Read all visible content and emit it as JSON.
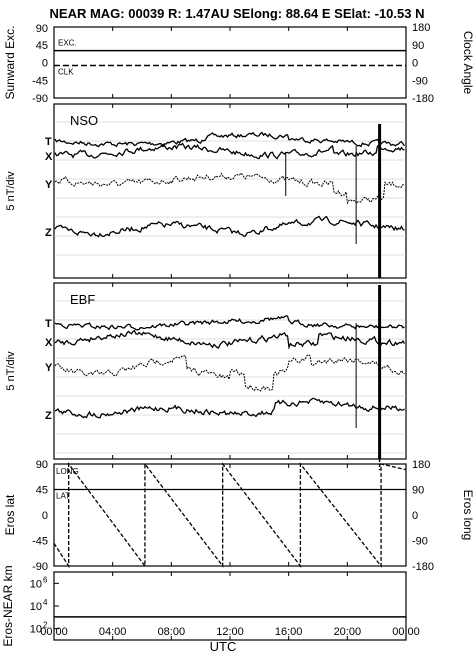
{
  "title": "NEAR MAG: 00039  R: 1.47AU  SElong:   88.64 E  SElat:  -10.53 N",
  "xlabel": "UTC",
  "x_ticks": [
    "00:00",
    "04:00",
    "08:00",
    "12:00",
    "16:00",
    "20:00",
    "00:00"
  ],
  "colors": {
    "ink": "#000000",
    "grid": "#bfbfbf",
    "background": "#ffffff"
  },
  "chart_data": [
    {
      "type": "line",
      "panel": "sunward-clock",
      "ylabel_left": "Sunward Exc.",
      "ylabel_right": "Clock Angle",
      "left_ticks": [
        "45",
        "0",
        "-45",
        "-90"
      ],
      "top_left_tick": "90",
      "right_ticks": [
        "180",
        "90",
        "0",
        "-90",
        "-180"
      ],
      "ylim_left": [
        -90,
        90
      ],
      "ylim_right": [
        -180,
        180
      ],
      "series": [
        {
          "name": "EXC.",
          "axis": "left",
          "style": "solid",
          "x": [
            0,
            24
          ],
          "y": [
            30,
            30
          ]
        },
        {
          "name": "CLK",
          "axis": "right",
          "style": "dashed",
          "x": [
            0,
            24
          ],
          "y": [
            -15,
            -15
          ]
        }
      ]
    },
    {
      "type": "line",
      "panel": "nso",
      "label": "NSO",
      "ylabel": "5 nT/div",
      "traces": [
        "T",
        "X",
        "Y",
        "Z"
      ]
    },
    {
      "type": "line",
      "panel": "ebf",
      "label": "EBF",
      "ylabel": "5 nT/div",
      "traces": [
        "T",
        "X",
        "Y",
        "Z"
      ]
    },
    {
      "type": "line",
      "panel": "eros-lat-long",
      "ylabel_left": "Eros lat",
      "ylabel_right": "Eros long",
      "left_ticks": [
        "90",
        "45",
        "0",
        "-45",
        "-90"
      ],
      "right_ticks": [
        "180",
        "90",
        "0",
        "-90",
        "-180"
      ],
      "ylim_left": [
        -90,
        90
      ],
      "ylim_right": [
        -180,
        180
      ],
      "series": [
        {
          "name": "LAT",
          "axis": "left",
          "style": "solid",
          "x": [
            0,
            24
          ],
          "y": [
            45,
            45
          ]
        },
        {
          "name": "LONG",
          "axis": "right",
          "style": "dashed",
          "x": [
            0,
            1,
            1,
            6.2,
            6.2,
            11.5,
            11.5,
            16.8,
            16.8,
            22.3,
            22.3,
            24
          ],
          "y": [
            -100,
            -180,
            180,
            -180,
            180,
            -180,
            180,
            -180,
            180,
            -180,
            180,
            160
          ]
        }
      ]
    },
    {
      "type": "line",
      "panel": "eros-near-distance",
      "ylabel": "Eros-NEAR km",
      "scale": "log",
      "y_ticks": [
        "10",
        "10",
        "10"
      ],
      "y_exponents": [
        "6",
        "4",
        "2"
      ],
      "ylim": [
        10,
        10000000
      ],
      "series": [
        {
          "name": "",
          "x": [
            0,
            24
          ],
          "y": [
            1100,
            1100
          ]
        }
      ]
    }
  ]
}
